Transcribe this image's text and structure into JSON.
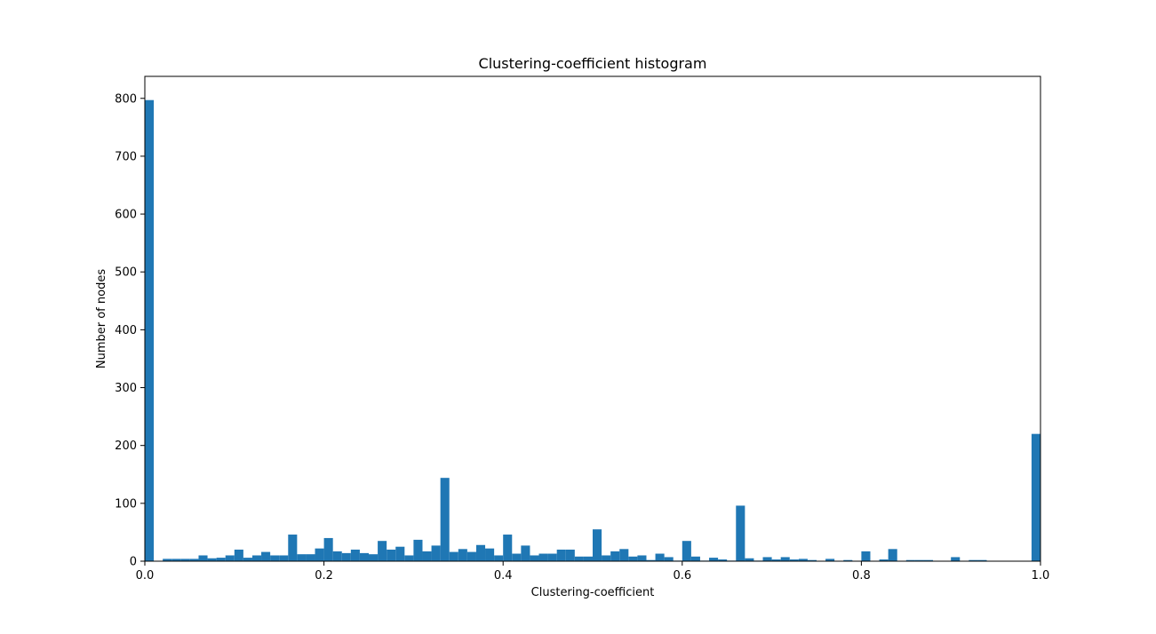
{
  "chart_data": {
    "type": "bar",
    "title": "Clustering-coefficient histogram",
    "xlabel": "Clustering-coefficient",
    "ylabel": "Number of nodes",
    "xlim": [
      0.0,
      1.0
    ],
    "ylim": [
      0,
      838
    ],
    "grid": false,
    "legend": "none",
    "bar_color": "#1f77b4",
    "bin_width": 0.01,
    "x_ticks": [
      {
        "value": 0.0,
        "label": "0.0"
      },
      {
        "value": 0.2,
        "label": "0.2"
      },
      {
        "value": 0.4,
        "label": "0.4"
      },
      {
        "value": 0.6,
        "label": "0.6"
      },
      {
        "value": 0.8,
        "label": "0.8"
      },
      {
        "value": 1.0,
        "label": "1.0"
      }
    ],
    "y_ticks": [
      {
        "value": 0,
        "label": "0"
      },
      {
        "value": 100,
        "label": "100"
      },
      {
        "value": 200,
        "label": "200"
      },
      {
        "value": 300,
        "label": "300"
      },
      {
        "value": 400,
        "label": "400"
      },
      {
        "value": 500,
        "label": "500"
      },
      {
        "value": 600,
        "label": "600"
      },
      {
        "value": 700,
        "label": "700"
      },
      {
        "value": 800,
        "label": "800"
      }
    ],
    "bin_starts": [
      0.0,
      0.01,
      0.02,
      0.03,
      0.04,
      0.05,
      0.06,
      0.07,
      0.08,
      0.09,
      0.1,
      0.11,
      0.12,
      0.13,
      0.14,
      0.15,
      0.16,
      0.17,
      0.18,
      0.19,
      0.2,
      0.21,
      0.22,
      0.23,
      0.24,
      0.25,
      0.26,
      0.27,
      0.28,
      0.29,
      0.3,
      0.31,
      0.32,
      0.33,
      0.34,
      0.35,
      0.36,
      0.37,
      0.38,
      0.39,
      0.4,
      0.41,
      0.42,
      0.43,
      0.44,
      0.45,
      0.46,
      0.47,
      0.48,
      0.49,
      0.5,
      0.51,
      0.52,
      0.53,
      0.54,
      0.55,
      0.56,
      0.57,
      0.58,
      0.59,
      0.6,
      0.61,
      0.62,
      0.63,
      0.64,
      0.65,
      0.66,
      0.67,
      0.68,
      0.69,
      0.7,
      0.71,
      0.72,
      0.73,
      0.74,
      0.75,
      0.76,
      0.77,
      0.78,
      0.79,
      0.8,
      0.81,
      0.82,
      0.83,
      0.84,
      0.85,
      0.86,
      0.87,
      0.88,
      0.89,
      0.9,
      0.91,
      0.92,
      0.93,
      0.94,
      0.95,
      0.96,
      0.97,
      0.98,
      0.99
    ],
    "values": [
      797,
      0,
      4,
      4,
      4,
      4,
      10,
      5,
      6,
      10,
      20,
      6,
      10,
      16,
      10,
      10,
      46,
      12,
      12,
      22,
      40,
      17,
      14,
      20,
      14,
      12,
      35,
      20,
      25,
      10,
      37,
      17,
      27,
      144,
      16,
      21,
      16,
      28,
      22,
      10,
      46,
      13,
      27,
      10,
      13,
      13,
      20,
      20,
      8,
      8,
      55,
      10,
      17,
      21,
      8,
      10,
      2,
      13,
      7,
      1,
      35,
      8,
      1,
      6,
      3,
      1,
      96,
      5,
      1,
      7,
      3,
      7,
      3,
      4,
      2,
      0,
      4,
      0,
      2,
      0,
      17,
      0,
      3,
      21,
      0,
      2,
      2,
      2,
      0,
      0,
      7,
      0,
      2,
      2,
      0,
      0,
      0,
      0,
      0,
      220
    ]
  }
}
